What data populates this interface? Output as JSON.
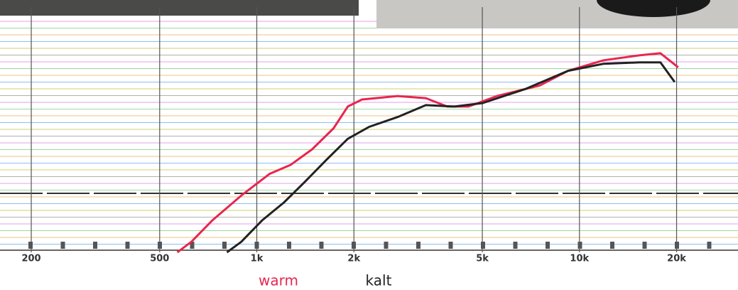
{
  "chart_data": {
    "type": "line",
    "xscale": "log",
    "xlim": [
      160,
      31000
    ],
    "ylim": [
      0,
      36
    ],
    "xticks": [
      {
        "value": 200,
        "label": "200"
      },
      {
        "value": 500,
        "label": "500"
      },
      {
        "value": 1000,
        "label": "1k"
      },
      {
        "value": 2000,
        "label": "2k"
      },
      {
        "value": 5000,
        "label": "5k"
      },
      {
        "value": 10000,
        "label": "10k"
      },
      {
        "value": 20000,
        "label": "20k"
      }
    ],
    "series": [
      {
        "name": "warm",
        "color": "#e8264f",
        "x": [
          567,
          627,
          730,
          895,
          1096,
          1275,
          1485,
          1729,
          1914,
          2118,
          2729,
          3343,
          3892,
          4532,
          5550,
          7530,
          9220,
          11880,
          15310,
          17820,
          20230
        ],
        "values": [
          0,
          1.5,
          4.6,
          8.1,
          11.2,
          12.5,
          14.7,
          17.7,
          20.8,
          21.8,
          22.3,
          22.0,
          20.8,
          20.8,
          22.3,
          23.8,
          25.9,
          27.4,
          28.1,
          28.4,
          26.4
        ]
      },
      {
        "name": "kalt",
        "color": "#222222",
        "x": [
          808,
          895,
          1041,
          1213,
          1412,
          1644,
          1914,
          2228,
          2729,
          3343,
          4096,
          5012,
          6800,
          9220,
          11880,
          15310,
          17820,
          19720
        ],
        "values": [
          0,
          1.5,
          4.6,
          7.1,
          10.1,
          13.2,
          16.2,
          17.9,
          19.3,
          21.0,
          20.8,
          21.3,
          23.3,
          25.9,
          26.9,
          27.1,
          27.1,
          24.3
        ]
      }
    ]
  }
}
